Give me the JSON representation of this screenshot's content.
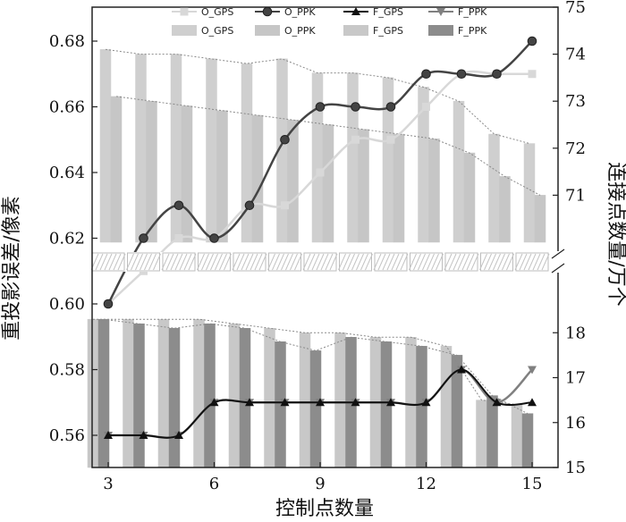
{
  "chart_data": {
    "type": "bar",
    "x": [
      3,
      4,
      5,
      6,
      7,
      8,
      9,
      10,
      11,
      12,
      13,
      14,
      15
    ],
    "xticks": [
      3,
      6,
      9,
      12,
      15
    ],
    "xlabel": "控制点数量",
    "ylabel_left": "重投影误差/像素",
    "ylabel_right": "连接点数量/万个",
    "left_axis": {
      "ylim": [
        0.55,
        0.685
      ],
      "ticks": [
        "0.56",
        "0.58",
        "0.60",
        "0.62",
        "0.64",
        "0.66",
        "0.68"
      ]
    },
    "right_axis": {
      "upper": {
        "ylim": [
          70.0,
          75.0
        ],
        "ticks": [
          "71",
          "72",
          "73",
          "74",
          "75"
        ]
      },
      "lower": {
        "ylim": [
          15.0,
          19.0
        ],
        "ticks": [
          "15",
          "16",
          "17",
          "18"
        ]
      }
    },
    "axis_break": "0.61 (left) / between 70.0 and 19.0 (right)",
    "legend": {
      "lines": [
        "O_GPS",
        "O_PPK",
        "F_GPS",
        "F_PPK"
      ],
      "bars": [
        "O_GPS",
        "O_PPK",
        "F_GPS",
        "F_PPK"
      ]
    },
    "line_series": [
      {
        "name": "O_GPS",
        "marker": "square",
        "color": "#d8d8d8",
        "values": [
          0.6,
          0.61,
          0.62,
          0.62,
          0.63,
          0.63,
          0.64,
          0.65,
          0.65,
          0.66,
          0.67,
          0.67,
          0.67
        ]
      },
      {
        "name": "O_PPK",
        "marker": "circle",
        "color": "#444444",
        "values": [
          0.6,
          0.62,
          0.63,
          0.62,
          0.63,
          0.65,
          0.66,
          0.66,
          0.66,
          0.67,
          0.67,
          0.67,
          0.68
        ]
      },
      {
        "name": "F_GPS",
        "marker": "triangle-up",
        "color": "#111111",
        "values": [
          0.56,
          0.56,
          0.56,
          0.57,
          0.57,
          0.57,
          0.57,
          0.57,
          0.57,
          0.57,
          0.58,
          0.57,
          0.57
        ]
      },
      {
        "name": "F_PPK",
        "marker": "triangle-down",
        "color": "#808080",
        "values": [
          0.56,
          0.56,
          0.56,
          0.57,
          0.57,
          0.57,
          0.57,
          0.57,
          0.57,
          0.57,
          0.58,
          0.57,
          0.58
        ]
      }
    ],
    "bar_series": [
      {
        "name": "O_GPS",
        "color": "#cfcfcf",
        "values": [
          74.1,
          74.0,
          74.0,
          73.9,
          73.8,
          73.9,
          73.6,
          73.6,
          73.5,
          73.3,
          73.0,
          72.3,
          72.1
        ]
      },
      {
        "name": "O_PPK",
        "color": "#c6c6c6",
        "values": [
          73.1,
          73.0,
          72.9,
          72.8,
          72.7,
          72.6,
          72.5,
          72.4,
          72.3,
          72.2,
          71.9,
          71.4,
          71.0
        ]
      },
      {
        "name": "F_GPS",
        "color": "#c8c8c8",
        "values": [
          18.3,
          18.3,
          18.3,
          18.3,
          18.2,
          18.1,
          18.0,
          18.0,
          17.9,
          17.9,
          17.7,
          16.5,
          16.4
        ]
      },
      {
        "name": "F_PPK",
        "color": "#8c8c8c",
        "values": [
          18.3,
          18.2,
          18.1,
          18.2,
          18.1,
          17.8,
          17.6,
          17.9,
          17.8,
          17.7,
          17.5,
          16.6,
          16.2
        ]
      }
    ]
  }
}
